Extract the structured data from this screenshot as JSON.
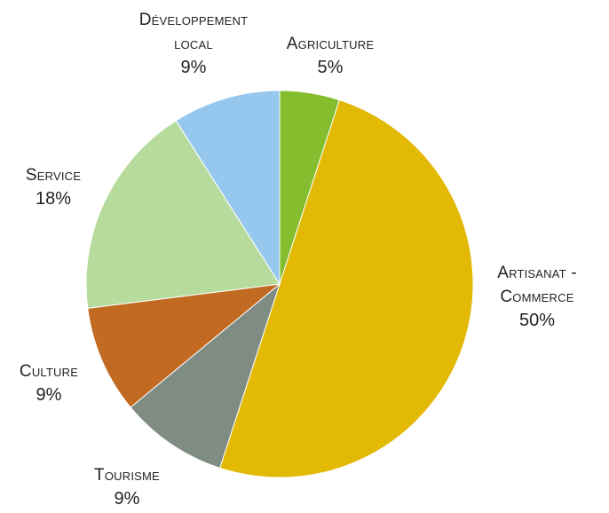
{
  "chart_data": {
    "type": "pie",
    "start_angle_deg": 0,
    "direction": "clockwise",
    "slices": [
      {
        "name": "Agriculture",
        "label_lines": [
          "Agriculture"
        ],
        "value": 5,
        "display": "5%",
        "color": "#84bd2e"
      },
      {
        "name": "Artisanat - Commerce",
        "label_lines": [
          "Artisanat -",
          "Commerce"
        ],
        "value": 50,
        "display": "50%",
        "color": "#e2b904"
      },
      {
        "name": "Tourisme",
        "label_lines": [
          "Tourisme"
        ],
        "value": 9,
        "display": "9%",
        "color": "#7f8c84"
      },
      {
        "name": "Culture",
        "label_lines": [
          "Culture"
        ],
        "value": 9,
        "display": "9%",
        "color": "#c26a22"
      },
      {
        "name": "Service",
        "label_lines": [
          "Service"
        ],
        "value": 18,
        "display": "18%",
        "color": "#b7db9d"
      },
      {
        "name": "Développement local",
        "label_lines": [
          "Développement",
          "local"
        ],
        "value": 9,
        "display": "9%",
        "color": "#95c7ef"
      }
    ]
  }
}
